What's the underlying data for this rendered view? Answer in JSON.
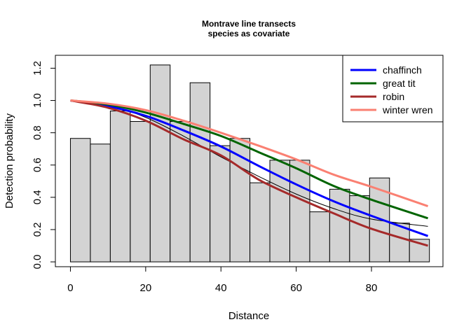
{
  "chart_data": {
    "type": "bar",
    "title": "Montrave line transects",
    "subtitle": "species as covariate",
    "xlabel": "Distance",
    "ylabel": "Detection probability",
    "xlim": [
      -4,
      99
    ],
    "ylim": [
      -0.03,
      1.28
    ],
    "x_ticks": [
      "0",
      "20",
      "40",
      "60",
      "80"
    ],
    "y_ticks": [
      "0.0",
      "0.2",
      "0.4",
      "0.6",
      "0.8",
      "1.0",
      "1.2"
    ],
    "histogram": {
      "breaks": [
        0,
        5.3,
        10.6,
        15.9,
        21.2,
        26.5,
        31.8,
        37.1,
        42.4,
        47.7,
        53.0,
        58.3,
        63.6,
        68.9,
        74.2,
        79.5,
        84.8,
        90.1,
        95.4
      ],
      "values": [
        0.765,
        0.73,
        0.935,
        0.87,
        1.22,
        0.87,
        1.11,
        0.72,
        0.765,
        0.49,
        0.63,
        0.63,
        0.31,
        0.45,
        0.41,
        0.52,
        0.24,
        0.14
      ],
      "fill": "#d3d3d3"
    },
    "average_curve": {
      "x": [
        0,
        10,
        20,
        30,
        40,
        50,
        60,
        70,
        80,
        95
      ],
      "y": [
        1.0,
        0.972,
        0.895,
        0.78,
        0.65,
        0.53,
        0.42,
        0.33,
        0.265,
        0.22
      ]
    },
    "series": [
      {
        "name": "chaffinch",
        "color": "#0000ff",
        "x": [
          0,
          10,
          20,
          30,
          40,
          50,
          60,
          70,
          80,
          95
        ],
        "y": [
          1.0,
          0.965,
          0.905,
          0.815,
          0.715,
          0.595,
          0.48,
          0.375,
          0.285,
          0.16
        ]
      },
      {
        "name": "great tit",
        "color": "#006400",
        "x": [
          0,
          10,
          20,
          30,
          40,
          50,
          60,
          70,
          80,
          95
        ],
        "y": [
          1.0,
          0.975,
          0.925,
          0.855,
          0.78,
          0.68,
          0.58,
          0.47,
          0.385,
          0.27
        ]
      },
      {
        "name": "robin",
        "color": "#a52a2a",
        "x": [
          0,
          10,
          20,
          30,
          40,
          50,
          60,
          70,
          80,
          95
        ],
        "y": [
          1.0,
          0.955,
          0.875,
          0.76,
          0.66,
          0.51,
          0.4,
          0.3,
          0.205,
          0.1
        ]
      },
      {
        "name": "winter wren",
        "color": "#fa8072",
        "x": [
          0,
          10,
          20,
          30,
          40,
          50,
          60,
          70,
          80,
          95
        ],
        "y": [
          1.0,
          0.98,
          0.94,
          0.875,
          0.8,
          0.72,
          0.635,
          0.54,
          0.465,
          0.345
        ]
      }
    ],
    "legend_position": "top-right",
    "grid": false
  }
}
